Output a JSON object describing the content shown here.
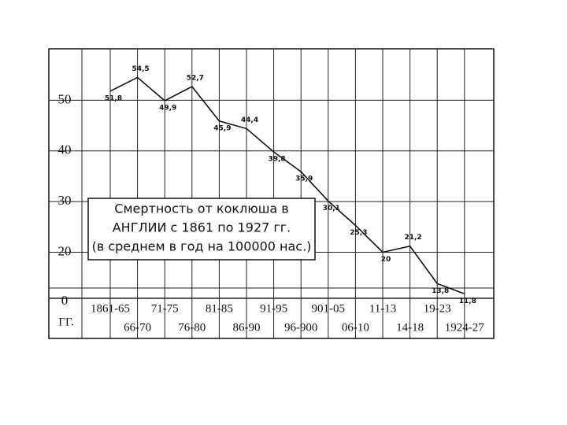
{
  "chart_data": {
    "type": "line",
    "title_lines": [
      "Смертность от коклюша в",
      "АНГЛИИ с 1861 по 1927 гг.",
      "(в среднем в год на 100000 нас.)"
    ],
    "x_axis_label": "ГГ.",
    "broken_axis_label": "0",
    "categories": [
      "1861-65",
      "66-70",
      "71-75",
      "76-80",
      "81-85",
      "86-90",
      "91-95",
      "96-900",
      "901-05",
      "06-10",
      "11-13",
      "14-18",
      "19-23",
      "1924-27"
    ],
    "values": [
      51.8,
      54.5,
      49.9,
      52.7,
      45.9,
      44.4,
      39.8,
      35.9,
      30.1,
      25.3,
      20,
      21.2,
      13.8,
      11.8
    ],
    "value_labels": [
      "51,8",
      "54,5",
      "49,9",
      "52,7",
      "45,9",
      "44,4",
      "39,8",
      "35,9",
      "30,1",
      "25,3",
      "20",
      "21,2",
      "13,8",
      "11,8"
    ],
    "color": "#111111",
    "ylim": [
      11,
      60
    ],
    "yticks": [
      20,
      30,
      40,
      50
    ],
    "grid": true
  }
}
